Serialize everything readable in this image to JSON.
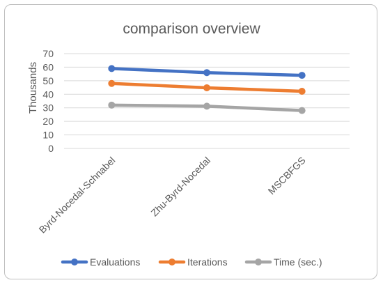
{
  "chart_data": {
    "type": "line",
    "title": "comparison overview",
    "ylabel": "Thousands",
    "xlabel": "",
    "categories": [
      "Byrd-Nocedal-Schnabel",
      "Zhu-Byrd-Nocedal",
      "MSCBFGS"
    ],
    "ylim": [
      0,
      70
    ],
    "yticks": [
      0,
      10,
      20,
      30,
      40,
      50,
      60,
      70
    ],
    "grid": true,
    "legend": "bottom",
    "series": [
      {
        "name": "Evaluations",
        "values": [
          59,
          56,
          54
        ],
        "color": "#4472c4"
      },
      {
        "name": "Iterations",
        "values": [
          48,
          44.8,
          42.2
        ],
        "color": "#ed7d31"
      },
      {
        "name": "Time (sec.)",
        "values": [
          32,
          31.2,
          28
        ],
        "color": "#a5a5a5"
      }
    ]
  }
}
